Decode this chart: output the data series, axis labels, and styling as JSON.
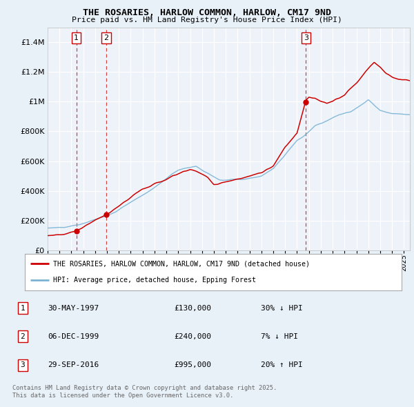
{
  "title": "THE ROSARIES, HARLOW COMMON, HARLOW, CM17 9ND",
  "subtitle": "Price paid vs. HM Land Registry's House Price Index (HPI)",
  "legend_line1": "THE ROSARIES, HARLOW COMMON, HARLOW, CM17 9ND (detached house)",
  "legend_line2": "HPI: Average price, detached house, Epping Forest",
  "footer_line1": "Contains HM Land Registry data © Crown copyright and database right 2025.",
  "footer_line2": "This data is licensed under the Open Government Licence v3.0.",
  "table_rows": [
    {
      "num": "1",
      "date": "30-MAY-1997",
      "price": "£130,000",
      "note": "30% ↓ HPI"
    },
    {
      "num": "2",
      "date": "06-DEC-1999",
      "price": "£240,000",
      "note": "7% ↓ HPI"
    },
    {
      "num": "3",
      "date": "29-SEP-2016",
      "price": "£995,000",
      "note": "20% ↑ HPI"
    }
  ],
  "price_line_color": "#cc0000",
  "hpi_line_color": "#7ab3d4",
  "background_color": "#e8f0f8",
  "plot_bg_color": "#eef3fa",
  "grid_color": "#ffffff",
  "sale_marker_color": "#cc0000",
  "vline_color": "#cc0000",
  "label_border_color": "#cc0000",
  "yticks": [
    0,
    200000,
    400000,
    600000,
    800000,
    1000000,
    1200000,
    1400000
  ],
  "ylim_max": 1500000,
  "xmin": 1995.0,
  "xmax": 2025.5
}
